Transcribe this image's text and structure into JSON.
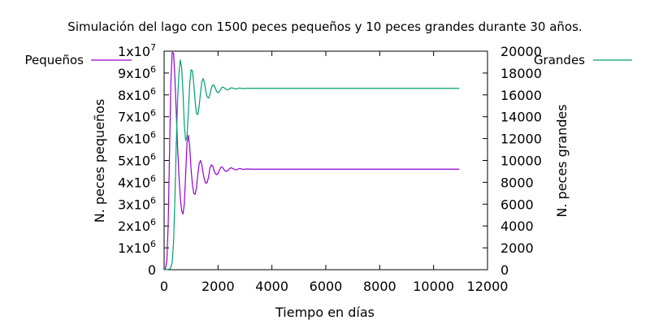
{
  "chart_data": {
    "type": "line",
    "title": "Simulación del lago con 1500 peces pequeños y 10 peces grandes durante 30 años.",
    "xlabel": "Tiempo en días",
    "ylabel_left": "N. peces pequeños",
    "ylabel_right": "N. peces grandes",
    "xlim": [
      0,
      12000
    ],
    "ylim_left": [
      0,
      10000000
    ],
    "ylim_right": [
      0,
      20000
    ],
    "x_ticks": [
      {
        "value": 0,
        "label": "0"
      },
      {
        "value": 2000,
        "label": "2000"
      },
      {
        "value": 4000,
        "label": "4000"
      },
      {
        "value": 6000,
        "label": "6000"
      },
      {
        "value": 8000,
        "label": "8000"
      },
      {
        "value": 10000,
        "label": "10000"
      },
      {
        "value": 12000,
        "label": "12000"
      }
    ],
    "y_left_ticks": [
      {
        "value": 0,
        "mant": "0",
        "exp": ""
      },
      {
        "value": 1000000,
        "mant": "1x10",
        "exp": "6"
      },
      {
        "value": 2000000,
        "mant": "2x10",
        "exp": "6"
      },
      {
        "value": 3000000,
        "mant": "3x10",
        "exp": "6"
      },
      {
        "value": 4000000,
        "mant": "4x10",
        "exp": "6"
      },
      {
        "value": 5000000,
        "mant": "5x10",
        "exp": "6"
      },
      {
        "value": 6000000,
        "mant": "6x10",
        "exp": "6"
      },
      {
        "value": 7000000,
        "mant": "7x10",
        "exp": "6"
      },
      {
        "value": 8000000,
        "mant": "8x10",
        "exp": "6"
      },
      {
        "value": 9000000,
        "mant": "9x10",
        "exp": "6"
      },
      {
        "value": 10000000,
        "mant": "1x10",
        "exp": "7"
      }
    ],
    "y_right_ticks": [
      {
        "value": 0,
        "label": "0"
      },
      {
        "value": 2000,
        "label": "2000"
      },
      {
        "value": 4000,
        "label": "4000"
      },
      {
        "value": 6000,
        "label": "6000"
      },
      {
        "value": 8000,
        "label": "8000"
      },
      {
        "value": 10000,
        "label": "10000"
      },
      {
        "value": 12000,
        "label": "12000"
      },
      {
        "value": 14000,
        "label": "14000"
      },
      {
        "value": 16000,
        "label": "16000"
      },
      {
        "value": 18000,
        "label": "18000"
      },
      {
        "value": 20000,
        "label": "20000"
      }
    ],
    "grid": false,
    "legend_placement": "outside-top",
    "series": [
      {
        "name": "Pequeños",
        "axis": "left",
        "color": "#9400d3",
        "x": [
          0,
          50,
          100,
          150,
          200,
          250,
          300,
          350,
          400,
          450,
          500,
          550,
          600,
          650,
          700,
          750,
          800,
          850,
          900,
          950,
          1000,
          1050,
          1100,
          1150,
          1200,
          1250,
          1300,
          1350,
          1400,
          1450,
          1500,
          1550,
          1600,
          1650,
          1700,
          1750,
          1800,
          1850,
          1900,
          1950,
          2000,
          2050,
          2100,
          2150,
          2200,
          2250,
          2300,
          2350,
          2400,
          2450,
          2500,
          2550,
          2600,
          2650,
          2700,
          2750,
          2800,
          2850,
          2900,
          2950,
          3000,
          3100,
          3200,
          3300,
          3400,
          3600,
          3800,
          4000,
          5000,
          6000,
          8000,
          10000,
          10950
        ],
        "y": [
          1500,
          50000,
          400000,
          2000000,
          5300000,
          8600000,
          9950000,
          9900000,
          8800000,
          7200000,
          5600000,
          4300000,
          3300000,
          2700000,
          2550000,
          3000000,
          4400000,
          5800000,
          6150000,
          5600000,
          4600000,
          3900000,
          3500000,
          3450000,
          3750000,
          4350000,
          4850000,
          5000000,
          4800000,
          4400000,
          4100000,
          3950000,
          4000000,
          4250000,
          4650000,
          4800000,
          4750000,
          4550000,
          4400000,
          4350000,
          4400000,
          4550000,
          4680000,
          4700000,
          4620000,
          4530000,
          4500000,
          4520000,
          4580000,
          4650000,
          4660000,
          4630000,
          4590000,
          4570000,
          4580000,
          4610000,
          4630000,
          4620000,
          4600000,
          4590000,
          4600000,
          4610000,
          4600000,
          4600000,
          4600000,
          4600000,
          4600000,
          4600000,
          4600000,
          4600000,
          4600000,
          4600000,
          4600000
        ]
      },
      {
        "name": "Grandes",
        "axis": "right",
        "color": "#009e73",
        "x": [
          0,
          50,
          100,
          150,
          200,
          250,
          300,
          350,
          400,
          450,
          500,
          550,
          600,
          650,
          700,
          750,
          800,
          850,
          900,
          950,
          1000,
          1050,
          1100,
          1150,
          1200,
          1250,
          1300,
          1350,
          1400,
          1450,
          1500,
          1550,
          1600,
          1650,
          1700,
          1750,
          1800,
          1850,
          1900,
          1950,
          2000,
          2050,
          2100,
          2150,
          2200,
          2250,
          2300,
          2350,
          2400,
          2450,
          2500,
          2550,
          2600,
          2650,
          2700,
          2750,
          2800,
          2850,
          2900,
          2950,
          3000,
          3100,
          3200,
          3300,
          3400,
          3600,
          3800,
          4000,
          5000,
          6000,
          8000,
          10000,
          10950
        ],
        "y": [
          10,
          10,
          15,
          25,
          60,
          200,
          700,
          2500,
          6500,
          11500,
          15500,
          18000,
          19200,
          18500,
          16200,
          13200,
          11800,
          12200,
          14500,
          17000,
          18300,
          18200,
          17000,
          15400,
          14300,
          14200,
          15000,
          16200,
          17200,
          17500,
          17100,
          16300,
          15800,
          15700,
          16000,
          16600,
          16900,
          16900,
          16600,
          16300,
          16200,
          16300,
          16500,
          16700,
          16700,
          16600,
          16500,
          16450,
          16500,
          16600,
          16650,
          16620,
          16570,
          16540,
          16560,
          16610,
          16630,
          16610,
          16590,
          16580,
          16590,
          16600,
          16600,
          16600,
          16600,
          16600,
          16600,
          16600,
          16600,
          16600,
          16600,
          16600,
          16600
        ]
      }
    ]
  }
}
